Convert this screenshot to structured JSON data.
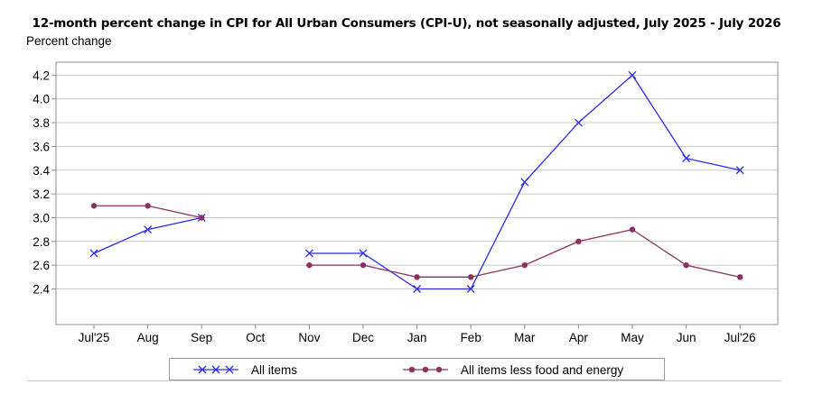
{
  "chart_data": {
    "type": "line",
    "title": "12-month percent change in CPI for All Urban Consumers (CPI-U), not seasonally adjusted, July 2025 - July 2026",
    "ylabel": "Percent change",
    "xlabel": "",
    "categories": [
      "Jul'25",
      "Aug",
      "Sep",
      "Oct",
      "Nov",
      "Dec",
      "Jan",
      "Feb",
      "Mar",
      "Apr",
      "May",
      "Jun",
      "Jul'26"
    ],
    "yticks": [
      "4.2",
      "4.0",
      "3.8",
      "3.6",
      "3.4",
      "3.2",
      "3.0",
      "2.8",
      "2.6",
      "2.4"
    ],
    "ylim": [
      2.1,
      4.3
    ],
    "grid": true,
    "legend_position": "bottom",
    "series": [
      {
        "name": "All items",
        "color": "#2b2bf0",
        "marker": "x",
        "values": [
          2.7,
          2.9,
          3.0,
          null,
          2.7,
          2.7,
          2.4,
          2.4,
          3.3,
          3.8,
          4.2,
          3.5,
          3.4
        ]
      },
      {
        "name": "All items less food and energy",
        "color": "#8e2f63",
        "marker": "dot",
        "values": [
          3.1,
          3.1,
          3.0,
          null,
          2.6,
          2.6,
          2.5,
          2.5,
          2.6,
          2.8,
          2.9,
          2.6,
          2.5
        ]
      }
    ]
  }
}
